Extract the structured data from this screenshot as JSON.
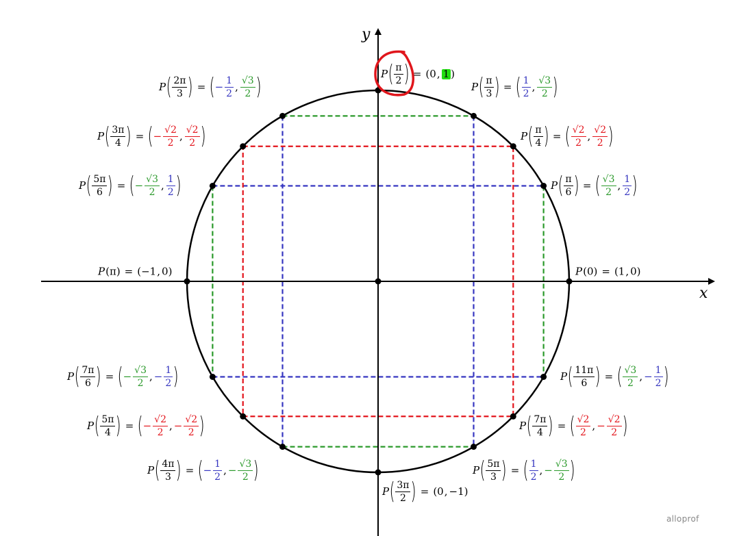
{
  "axes": {
    "x_label": "x",
    "y_label": "y"
  },
  "colors": {
    "red": "#e3141b",
    "blue": "#3535c0",
    "green": "#2a992a",
    "axis": "#000000",
    "highlight": "#22dd11",
    "annotation": "#e0161c"
  },
  "logo": "alloprof",
  "points": [
    {
      "deg": 0,
      "angle": {
        "text": "0"
      },
      "x": {
        "text": "1"
      },
      "y": {
        "text": "0"
      }
    },
    {
      "deg": 30,
      "angle": {
        "num": "π",
        "den": "6"
      },
      "x": {
        "num": "√3",
        "den": "2",
        "color": "green"
      },
      "y": {
        "num": "1",
        "den": "2",
        "color": "blue"
      }
    },
    {
      "deg": 45,
      "angle": {
        "num": "π",
        "den": "4"
      },
      "x": {
        "num": "√2",
        "den": "2",
        "color": "red"
      },
      "y": {
        "num": "√2",
        "den": "2",
        "color": "red"
      }
    },
    {
      "deg": 60,
      "angle": {
        "num": "π",
        "den": "3"
      },
      "x": {
        "num": "1",
        "den": "2",
        "color": "blue"
      },
      "y": {
        "num": "√3",
        "den": "2",
        "color": "green"
      }
    },
    {
      "deg": 90,
      "angle": {
        "num": "π",
        "den": "2"
      },
      "x": {
        "text": "0"
      },
      "y": {
        "text": "1",
        "highlight": true
      }
    },
    {
      "deg": 120,
      "angle": {
        "num": "2π",
        "den": "3"
      },
      "x": {
        "sign": "−",
        "num": "1",
        "den": "2",
        "color": "blue"
      },
      "y": {
        "num": "√3",
        "den": "2",
        "color": "green"
      }
    },
    {
      "deg": 135,
      "angle": {
        "num": "3π",
        "den": "4"
      },
      "x": {
        "sign": "−",
        "num": "√2",
        "den": "2",
        "color": "red"
      },
      "y": {
        "num": "√2",
        "den": "2",
        "color": "red"
      }
    },
    {
      "deg": 150,
      "angle": {
        "num": "5π",
        "den": "6"
      },
      "x": {
        "sign": "−",
        "num": "√3",
        "den": "2",
        "color": "green"
      },
      "y": {
        "num": "1",
        "den": "2",
        "color": "blue"
      }
    },
    {
      "deg": 180,
      "angle": {
        "text": "π"
      },
      "x": {
        "text": "−1"
      },
      "y": {
        "text": "0"
      }
    },
    {
      "deg": 210,
      "angle": {
        "num": "7π",
        "den": "6"
      },
      "x": {
        "sign": "−",
        "num": "√3",
        "den": "2",
        "color": "green"
      },
      "y": {
        "sign": "−",
        "num": "1",
        "den": "2",
        "color": "blue"
      }
    },
    {
      "deg": 225,
      "angle": {
        "num": "5π",
        "den": "4"
      },
      "x": {
        "sign": "−",
        "num": "√2",
        "den": "2",
        "color": "red"
      },
      "y": {
        "sign": "−",
        "num": "√2",
        "den": "2",
        "color": "red"
      }
    },
    {
      "deg": 240,
      "angle": {
        "num": "4π",
        "den": "3"
      },
      "x": {
        "sign": "−",
        "num": "1",
        "den": "2",
        "color": "blue"
      },
      "y": {
        "sign": "−",
        "num": "√3",
        "den": "2",
        "color": "green"
      }
    },
    {
      "deg": 270,
      "angle": {
        "num": "3π",
        "den": "2"
      },
      "x": {
        "text": "0"
      },
      "y": {
        "text": "−1"
      }
    },
    {
      "deg": 300,
      "angle": {
        "num": "5π",
        "den": "3"
      },
      "x": {
        "num": "1",
        "den": "2",
        "color": "blue"
      },
      "y": {
        "sign": "−",
        "num": "√3",
        "den": "2",
        "color": "green"
      }
    },
    {
      "deg": 315,
      "angle": {
        "num": "7π",
        "den": "4"
      },
      "x": {
        "num": "√2",
        "den": "2",
        "color": "red"
      },
      "y": {
        "sign": "−",
        "num": "√2",
        "den": "2",
        "color": "red"
      }
    },
    {
      "deg": 330,
      "angle": {
        "num": "11π",
        "den": "6"
      },
      "x": {
        "num": "√3",
        "den": "2",
        "color": "green"
      },
      "y": {
        "sign": "−",
        "num": "1",
        "den": "2",
        "color": "blue"
      }
    }
  ]
}
